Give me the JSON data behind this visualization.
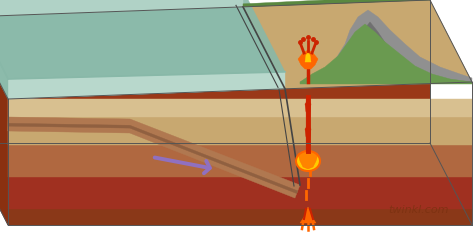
{
  "bg_color": "#ffffff",
  "watermark": "twinkl.com",
  "watermark_color": "#7a3010",
  "watermark_fontsize": 8,
  "ocean_surface_color": "#a8cfc0",
  "ocean_water_color": "#b8d8cc",
  "ocean_rim_color": "#88b8a8",
  "land_surface_color": "#c8a870",
  "layer_cream": "#d8c090",
  "layer_tan": "#c8a870",
  "layer_brown": "#b06840",
  "layer_dark_brown": "#8a3818",
  "layer_red_brown": "#a03020",
  "back_face_color": "#9a3818",
  "bottom_face_color": "#7a2808",
  "left_face_color": "#8a3010",
  "mountain_rock": "#909090",
  "mountain_dark": "#707070",
  "mountain_green": "#6a9a50",
  "mountain_green2": "#5a8840",
  "slab_color": "#b07850",
  "slab_stripe": "#906040",
  "slab_dark": "#7a4828",
  "plate_crack_color": "#444444",
  "arrow_color": "#9070c0",
  "lava_red": "#cc2200",
  "lava_orange": "#ff6600",
  "lava_yellow": "#ffcc00",
  "dx3d": -42,
  "dy3d": 82
}
